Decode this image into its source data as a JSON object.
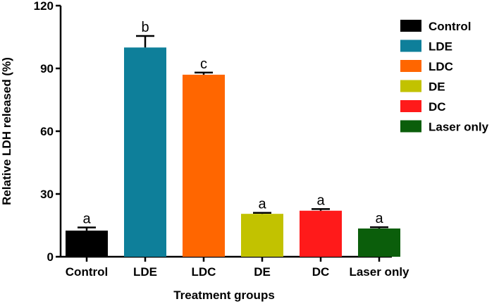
{
  "chart_data": {
    "type": "bar",
    "categories": [
      "Control",
      "LDE",
      "LDC",
      "DE",
      "DC",
      "Laser only"
    ],
    "values": [
      12.5,
      100,
      87,
      20.5,
      22,
      13.5
    ],
    "errors": [
      1.5,
      5.5,
      1,
      0.5,
      0.8,
      0.6
    ],
    "significance": [
      "a",
      "b",
      "c",
      "a",
      "a",
      "a"
    ],
    "colors": [
      "#000000",
      "#0e7f9a",
      "#ff6600",
      "#c2c200",
      "#ff1a1a",
      "#0b5e0b"
    ],
    "xlabel": "Treatment groups",
    "ylabel": "Relative LDH released (%)",
    "ylim": [
      0,
      120
    ],
    "yticks": [
      0,
      30,
      60,
      90,
      120
    ],
    "grid": false,
    "legend": {
      "placement": "top-right",
      "entries": [
        "Control",
        "LDE",
        "LDC",
        "DE",
        "DC",
        "Laser only"
      ]
    }
  }
}
